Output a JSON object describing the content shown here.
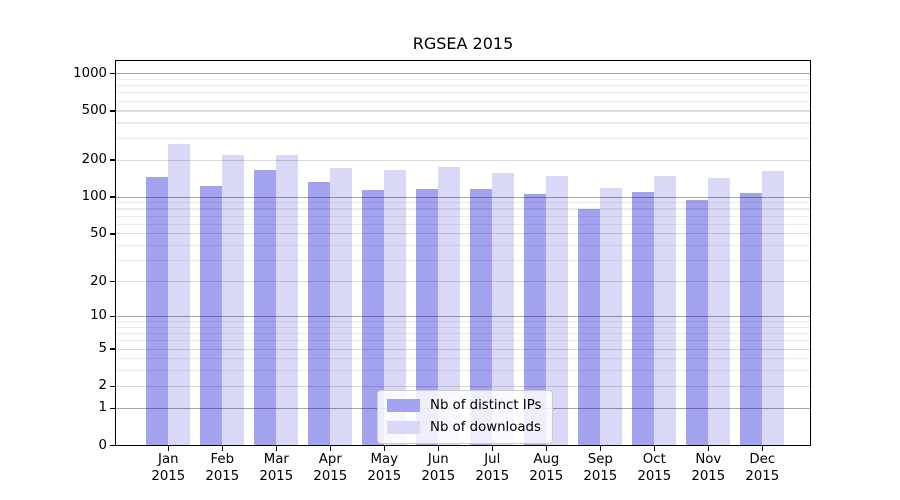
{
  "chart_data": {
    "type": "bar",
    "title": "RGSEA 2015",
    "categories": [
      "Jan",
      "Feb",
      "Mar",
      "Apr",
      "May",
      "Jun",
      "Jul",
      "Aug",
      "Sep",
      "Oct",
      "Nov",
      "Dec"
    ],
    "category_year": "2015",
    "series": [
      {
        "name": "Nb of distinct IPs",
        "color": "#a2a2ef",
        "values": [
          145,
          123,
          167,
          132,
          115,
          117,
          117,
          107,
          80,
          110,
          95,
          109
        ]
      },
      {
        "name": "Nb of downloads",
        "color": "#d9d9f7",
        "values": [
          270,
          220,
          222,
          172,
          165,
          176,
          156,
          150,
          119,
          149,
          142,
          164
        ]
      }
    ],
    "xlabel": "",
    "ylabel": "",
    "y_axis": {
      "scale": "log10(1+v)",
      "ticks": [
        0,
        1,
        2,
        5,
        10,
        20,
        50,
        100,
        200,
        500,
        1000
      ],
      "minor_ticks": [
        3,
        4,
        6,
        7,
        8,
        9,
        30,
        40,
        60,
        70,
        80,
        90,
        300,
        400,
        600,
        700,
        800,
        900
      ],
      "ylim": [
        0,
        1290
      ]
    },
    "grid": true,
    "legend_position": "lower center"
  }
}
